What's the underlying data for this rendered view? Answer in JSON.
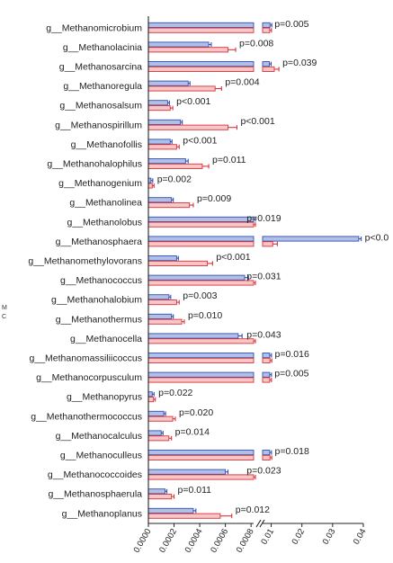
{
  "chart_data": {
    "type": "bar",
    "orientation": "horizontal",
    "broken_axis": true,
    "grid": false,
    "colors": {
      "series_a_fill": "#b3c0e6",
      "series_a_stroke": "#2f4fb5",
      "series_b_fill": "#f7c6c6",
      "series_b_stroke": "#d8323a",
      "axis": "#222222"
    },
    "side_letters": [
      "M",
      "C"
    ],
    "categories": [
      "g__Methanomicrobium",
      "g__Methanolacinia",
      "g__Methanosarcina",
      "g__Methanoregula",
      "g__Methanosalsum",
      "g__Methanospirillum",
      "g__Methanofollis",
      "g__Methanohalophilus",
      "g__Methanogenium",
      "g__Methanolinea",
      "g__Methanolobus",
      "g__Methanosphaera",
      "g__Methanomethylovorans",
      "g__Methanococcus",
      "g__Methanohalobium",
      "g__Methanothermus",
      "g__Methanocella",
      "g__Methanomassiliicoccus",
      "g__Methanocorpusculum",
      "g__Methanopyrus",
      "g__Methanothermococcus",
      "g__Methanocalculus",
      "g__Methanoculleus",
      "g__Methanococcoides",
      "g__Methanosphaerula",
      "g__Methanoplanus"
    ],
    "p_values": [
      "p=0.005",
      "p=0.008",
      "p=0.039",
      "p=0.004",
      "p<0.001",
      "p<0.001",
      "p<0.001",
      "p=0.011",
      "p=0.002",
      "p=0.009",
      "p=0.019",
      "p<0.0",
      "p<0.001",
      "p=0.031",
      "p=0.003",
      "p=0.010",
      "p=0.043",
      "p=0.016",
      "p=0.005",
      "p=0.022",
      "p=0.020",
      "p=0.014",
      "p=0.018",
      "p=0.023",
      "p=0.011",
      "p=0.012"
    ],
    "series": [
      {
        "values": [
          0.0096,
          0.00047,
          0.0094,
          0.00031,
          0.00015,
          0.00025,
          0.00017,
          0.00029,
          2e-05,
          0.00018,
          0.00082,
          0.0385,
          0.00022,
          0.00075,
          0.00016,
          0.00018,
          0.0007,
          0.0095,
          0.0095,
          3e-05,
          0.00012,
          0.0001,
          0.0095,
          0.0006,
          0.00013,
          0.00035
        ],
        "errors": [
          0.0003,
          2e-05,
          0.0003,
          1e-05,
          1e-05,
          1e-05,
          1e-05,
          2e-05,
          1e-05,
          1e-05,
          2e-05,
          0.0008,
          1e-05,
          3e-05,
          1e-05,
          1e-05,
          3e-05,
          0.0004,
          0.0004,
          1e-05,
          1e-05,
          1e-05,
          0.0004,
          2e-05,
          1e-05,
          2e-05
        ]
      },
      {
        "values": [
          0.0095,
          0.00062,
          0.011,
          0.00052,
          0.00017,
          0.00062,
          0.00022,
          0.00042,
          3e-05,
          0.00032,
          0.00082,
          0.0105,
          0.00046,
          0.00082,
          0.00022,
          0.00026,
          0.00082,
          0.0096,
          0.0095,
          4e-05,
          0.00019,
          0.00016,
          0.0096,
          0.00082,
          0.00018,
          0.00056
        ]
      }
    ],
    "series_b_errors": [
      0.0003,
      6e-05,
      0.0015,
      5e-05,
      2e-05,
      7e-05,
      2e-05,
      5e-05,
      1e-05,
      3e-05,
      2e-05,
      0.0015,
      4e-05,
      2e-05,
      2e-05,
      2e-05,
      2e-05,
      0.0004,
      0.0004,
      1e-05,
      2e-05,
      2e-05,
      0.0004,
      2e-05,
      2e-05,
      9e-05
    ],
    "axis_left": {
      "range": [
        0,
        0.00082
      ],
      "ticks": [
        0,
        0.0002,
        0.0004,
        0.0006,
        0.0008
      ],
      "tick_labels": [
        "0.0000",
        "0.0002",
        "0.0004",
        "0.0006",
        "0.0008"
      ]
    },
    "axis_right": {
      "range": [
        0.0072,
        0.04
      ],
      "ticks": [
        0.01,
        0.02,
        0.03,
        0.04
      ],
      "tick_labels": [
        "0.01",
        "0.02",
        "0.03",
        "0.04"
      ]
    }
  }
}
